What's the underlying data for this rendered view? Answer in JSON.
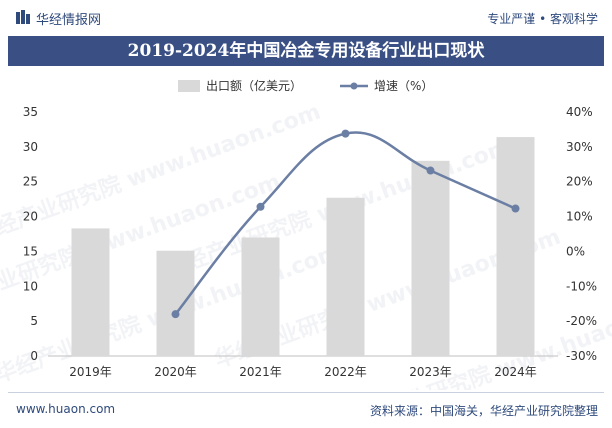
{
  "header": {
    "brand": "华经情报网",
    "slogan": "专业严谨 • 客观科学"
  },
  "title": "2019-2024年中国冶金专用设备行业出口现状",
  "footer": {
    "website": "www.huaon.com",
    "source": "资料来源：中国海关，华经产业研究院整理"
  },
  "colors": {
    "bar": "#d9d9d9",
    "line": "#6b7ea3",
    "title_bg": "#3a5085",
    "brand": "#2f4a7c"
  },
  "chart_data": {
    "type": "bar+line",
    "title": "2019-2024年中国冶金专用设备行业出口现状",
    "categories": [
      "2019年",
      "2020年",
      "2021年",
      "2022年",
      "2023年",
      "2024年"
    ],
    "series": [
      {
        "name": "出口额（亿美元）",
        "type": "bar",
        "axis": "left",
        "values": [
          18.3,
          15.1,
          17.0,
          22.7,
          28.0,
          31.4
        ]
      },
      {
        "name": "增速（%）",
        "type": "line",
        "axis": "right",
        "values": [
          null,
          -18.0,
          12.8,
          33.8,
          23.2,
          12.3
        ]
      }
    ],
    "left_axis": {
      "min": 0,
      "max": 35,
      "ticks": [
        "0",
        "5",
        "10",
        "15",
        "20",
        "25",
        "30",
        "35"
      ]
    },
    "right_axis": {
      "min": -30,
      "max": 40,
      "ticks": [
        "-30%",
        "-20%",
        "-10%",
        "0%",
        "10%",
        "20%",
        "30%",
        "40%"
      ]
    },
    "legend_position": "top-center",
    "watermark": "华经产业研究院 www.huaon.com"
  }
}
